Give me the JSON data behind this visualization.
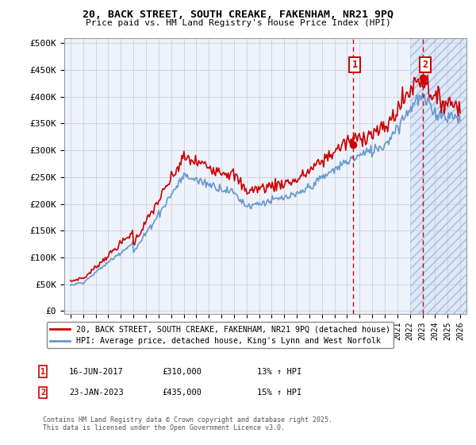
{
  "title1": "20, BACK STREET, SOUTH CREAKE, FAKENHAM, NR21 9PQ",
  "title2": "Price paid vs. HM Land Registry's House Price Index (HPI)",
  "ylabel_ticks": [
    "£0",
    "£50K",
    "£100K",
    "£150K",
    "£200K",
    "£250K",
    "£300K",
    "£350K",
    "£400K",
    "£450K",
    "£500K"
  ],
  "ytick_vals": [
    0,
    50000,
    100000,
    150000,
    200000,
    250000,
    300000,
    350000,
    400000,
    450000,
    500000
  ],
  "xlim": [
    1994.5,
    2026.5
  ],
  "ylim": [
    -5000,
    510000
  ],
  "legend1": "20, BACK STREET, SOUTH CREAKE, FAKENHAM, NR21 9PQ (detached house)",
  "legend2": "HPI: Average price, detached house, King's Lynn and West Norfolk",
  "ann1_date": "16-JUN-2017",
  "ann1_price": "£310,000",
  "ann1_hpi": "13% ↑ HPI",
  "ann2_date": "23-JAN-2023",
  "ann2_price": "£435,000",
  "ann2_hpi": "15% ↑ HPI",
  "marker1_x": 2017.45,
  "marker1_y": 310000,
  "marker2_x": 2023.06,
  "marker2_y": 435000,
  "footnote": "Contains HM Land Registry data © Crown copyright and database right 2025.\nThis data is licensed under the Open Government Licence v3.0.",
  "line_color_red": "#cc0000",
  "line_color_blue": "#6699cc",
  "bg_color": "#eef2fb",
  "grid_color": "#c8d0e0",
  "shade_color": "#dde8f8"
}
